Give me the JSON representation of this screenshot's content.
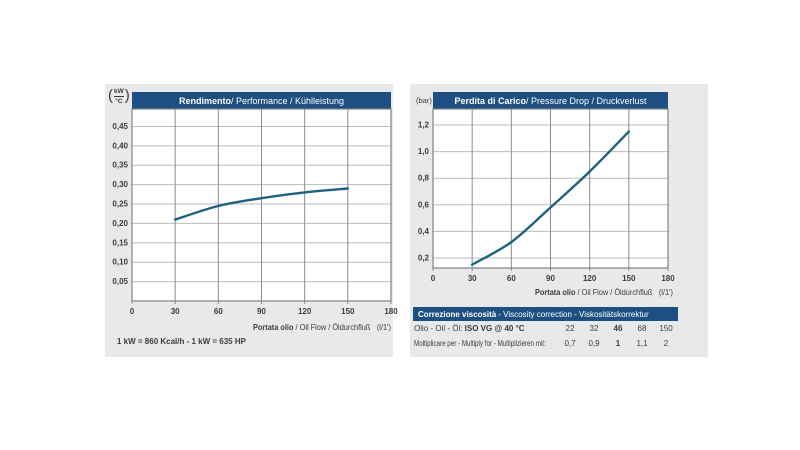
{
  "colors": {
    "panel_bg": "#e8e9ea",
    "header_bg": "#1d4f80",
    "curve": "#1f6181",
    "grid_v": "#8a8d90",
    "grid_h": "#b9bcbe",
    "plot_border": "#7e8184",
    "text": "#3a3c3e"
  },
  "chart_data": [
    {
      "type": "line",
      "title_bold": "Rendimento",
      "title_rest": " / Performance / Kühlleistung",
      "ylabel": "kW/°C",
      "ylabel_unit_top": "kW",
      "ylabel_unit_bottom": "°C",
      "xlabel_bold": "Portata olio",
      "xlabel_rest": " / Oil Flow / Öldurchfluß",
      "xlabel_unit": "(l/1')",
      "xlim": [
        0,
        180
      ],
      "ylim": [
        0,
        0.495
      ],
      "xticks": [
        0,
        30,
        60,
        90,
        120,
        150,
        180
      ],
      "xtick_labels": [
        "0",
        "30",
        "60",
        "90",
        "120",
        "150",
        "180"
      ],
      "yticks": [
        0.05,
        0.1,
        0.15,
        0.2,
        0.25,
        0.3,
        0.35,
        0.4,
        0.45
      ],
      "ytick_labels": [
        "0,05",
        "0,10",
        "0,15",
        "0,20",
        "0,25",
        "0,30",
        "0,35",
        "0,40",
        "0,45"
      ],
      "x": [
        30,
        60,
        90,
        120,
        150
      ],
      "y": [
        0.21,
        0.245,
        0.265,
        0.28,
        0.29
      ],
      "grid": true,
      "legend": false
    },
    {
      "type": "line",
      "title_bold": "Perdita di Carico",
      "title_rest": " / Pressure Drop / Druckverlust",
      "ylabel": "bar",
      "ylabel_unit": "(bar)",
      "xlabel_bold": "Portata olio",
      "xlabel_rest": " / Oil Flow / Öldurchfluß",
      "xlabel_unit": "(l/1')",
      "xlim": [
        0,
        180
      ],
      "ylim": [
        0.125,
        1.32
      ],
      "xticks": [
        0,
        30,
        60,
        90,
        120,
        150,
        180
      ],
      "xtick_labels": [
        "0",
        "30",
        "60",
        "90",
        "120",
        "150",
        "180"
      ],
      "yticks": [
        0.2,
        0.4,
        0.6,
        0.8,
        1.0,
        1.2
      ],
      "ytick_labels": [
        "0,2",
        "0,4",
        "0,6",
        "0,8",
        "1,0",
        "1,2"
      ],
      "x": [
        30,
        60,
        90,
        120,
        150
      ],
      "y": [
        0.15,
        0.32,
        0.58,
        0.85,
        1.15
      ],
      "grid": true,
      "legend": false
    }
  ],
  "notes": {
    "conversion": "1 kW = 860 Kcal/h - 1 kW = 635 HP"
  },
  "viscosity": {
    "header_bold": "Correzione viscosità",
    "header_rest": " -  Viscosity correction  -  Viskositätskorrektur",
    "oil_label": "Olio - Oil - Öl: ",
    "oil_label_bold": "ISO VG @ 40 °C",
    "oil_values": [
      "22",
      "32",
      "46",
      "68",
      "150"
    ],
    "multiply_label": "Moltiplicare per - Multiply for - Multiplizieren mit:",
    "multiply_values": [
      "0,7",
      "0,9",
      "1",
      "1,1",
      "2"
    ],
    "bold_column": 2
  }
}
